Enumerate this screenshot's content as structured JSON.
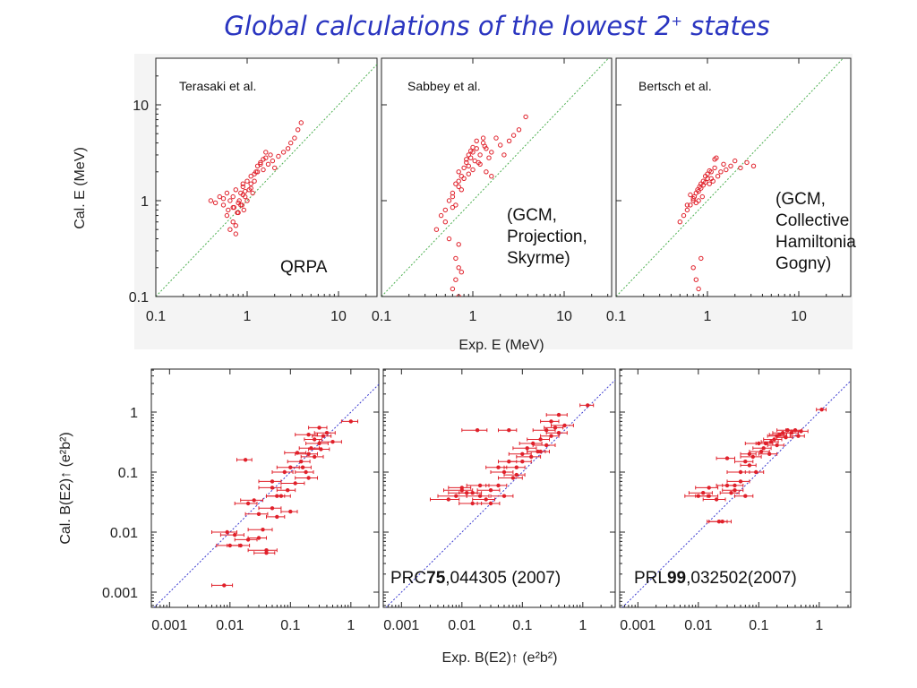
{
  "slide": {
    "title_prefix": "Global calculations of the lowest 2",
    "title_sup": "+",
    "title_suffix": " states"
  },
  "top_panels": [
    {
      "author": "Terasaki et al.",
      "note": [
        "QRPA"
      ]
    },
    {
      "author": "Sabbey et al.",
      "note": [
        "(GCM,",
        "Projection,",
        "Skyrme)"
      ]
    },
    {
      "author": "Bertsch et al.",
      "note": [
        "(GCM,",
        "Collective",
        "Hamiltonia",
        "Gogny)"
      ]
    }
  ],
  "bottom_panels": [
    {
      "ref_prefix": "",
      "ref_bold": "",
      "ref_suffix": ""
    },
    {
      "ref_prefix": "PRC",
      "ref_bold": "75",
      "ref_suffix": ",044305 (2007)"
    },
    {
      "ref_prefix": "PRL",
      "ref_bold": "99",
      "ref_suffix": ",032502(2007)"
    }
  ],
  "axes": {
    "top_ylabel": "Cal. E (MeV)",
    "top_xlabel": "Exp. E (MeV)",
    "bottom_ylabel": "Cal. B(E2)↑ (e²b²)",
    "bottom_xlabel": "Exp. B(E2)↑ (e²b²)"
  },
  "colors": {
    "title": "#2a35c0",
    "points": "#e0202a",
    "diag_top": "#4caf50",
    "diag_bottom": "#3a3ad0"
  },
  "chart_data": [
    {
      "type": "scatter",
      "title": "Terasaki et al.",
      "xlabel": "Exp. E (MeV)",
      "ylabel": "Cal. E (MeV)",
      "xscale": "log",
      "yscale": "log",
      "xlim": [
        0.1,
        25
      ],
      "ylim": [
        0.1,
        25
      ],
      "xticks": [
        "0.1",
        "1",
        "10"
      ],
      "yticks": [
        "0.1",
        "1",
        "10"
      ],
      "x": [
        0.4,
        0.45,
        0.5,
        0.55,
        0.6,
        0.62,
        0.65,
        0.7,
        0.72,
        0.75,
        0.78,
        0.8,
        0.82,
        0.85,
        0.88,
        0.9,
        0.92,
        0.95,
        1.0,
        1.05,
        1.1,
        1.15,
        1.2,
        1.25,
        1.3,
        1.4,
        1.5,
        1.6,
        1.7,
        1.8,
        1.9,
        2.0,
        2.2,
        2.5,
        2.8,
        3.0,
        3.3,
        3.6,
        3.9,
        0.6,
        0.7,
        0.8,
        0.9,
        1.0,
        1.1,
        1.3,
        1.5,
        0.65,
        0.75,
        0.85,
        0.95,
        1.2,
        1.4,
        1.6,
        0.55,
        0.7,
        0.9,
        1.1,
        0.75
      ],
      "y": [
        1.0,
        0.95,
        1.1,
        0.9,
        1.2,
        0.8,
        1.0,
        1.1,
        0.85,
        1.3,
        0.75,
        0.95,
        1.0,
        1.2,
        0.9,
        1.4,
        0.8,
        1.1,
        1.0,
        1.3,
        1.5,
        1.2,
        1.6,
        2.0,
        2.3,
        2.5,
        2.1,
        2.8,
        2.4,
        3.0,
        2.6,
        2.2,
        2.9,
        3.2,
        3.5,
        4.0,
        4.5,
        5.5,
        6.5,
        0.7,
        0.6,
        0.75,
        1.5,
        1.6,
        1.8,
        2.0,
        2.7,
        0.5,
        0.45,
        0.9,
        1.25,
        1.9,
        2.4,
        3.2,
        1.05,
        0.85,
        1.15,
        1.35,
        0.55
      ]
    },
    {
      "type": "scatter",
      "title": "Sabbey et al.",
      "xlabel": "Exp. E (MeV)",
      "ylabel": "Cal. E (MeV)",
      "xscale": "log",
      "yscale": "log",
      "xlim": [
        0.1,
        25
      ],
      "ylim": [
        0.1,
        25
      ],
      "x": [
        0.4,
        0.45,
        0.5,
        0.55,
        0.6,
        0.65,
        0.7,
        0.75,
        0.8,
        0.85,
        0.9,
        0.95,
        1.0,
        1.05,
        1.1,
        1.2,
        1.3,
        1.4,
        1.5,
        1.6,
        1.8,
        2.0,
        2.2,
        2.5,
        2.8,
        3.2,
        3.8,
        0.6,
        0.7,
        0.8,
        0.9,
        1.0,
        1.1,
        1.2,
        1.4,
        1.6,
        0.65,
        0.75,
        0.85,
        0.95,
        1.15,
        1.35,
        0.5,
        0.6,
        0.7,
        0.9,
        1.0,
        1.3,
        0.65,
        0.7,
        0.75,
        0.7,
        0.65,
        0.6,
        0.55,
        0.7
      ],
      "y": [
        0.5,
        0.7,
        0.8,
        1.0,
        1.2,
        1.5,
        2.0,
        1.8,
        2.2,
        2.5,
        3.0,
        2.8,
        3.2,
        2.6,
        3.5,
        3.0,
        4.0,
        3.5,
        2.8,
        3.2,
        4.5,
        3.8,
        3.0,
        4.2,
        4.8,
        5.5,
        7.5,
        1.1,
        1.4,
        1.7,
        2.3,
        3.6,
        4.2,
        2.4,
        2.0,
        1.8,
        0.9,
        1.3,
        2.7,
        3.3,
        2.5,
        3.7,
        0.6,
        0.85,
        1.6,
        1.9,
        2.1,
        4.5,
        0.25,
        0.2,
        0.18,
        0.35,
        0.15,
        0.12,
        0.4,
        0.1
      ]
    },
    {
      "type": "scatter",
      "title": "Bertsch et al.",
      "xlabel": "Exp. E (MeV)",
      "ylabel": "Cal. E (MeV)",
      "xscale": "log",
      "yscale": "log",
      "xlim": [
        0.1,
        25
      ],
      "ylim": [
        0.1,
        25
      ],
      "x": [
        0.5,
        0.55,
        0.6,
        0.65,
        0.7,
        0.72,
        0.75,
        0.78,
        0.8,
        0.82,
        0.85,
        0.88,
        0.9,
        0.95,
        1.0,
        1.05,
        1.1,
        1.15,
        1.2,
        1.3,
        1.4,
        1.5,
        1.6,
        1.8,
        2.0,
        2.3,
        2.7,
        3.2,
        0.6,
        0.7,
        0.8,
        0.9,
        1.0,
        1.1,
        1.2,
        0.65,
        0.75,
        0.85,
        0.95,
        1.05,
        1.25,
        0.7,
        0.75,
        0.8,
        0.85
      ],
      "y": [
        0.6,
        0.7,
        0.8,
        0.9,
        1.0,
        1.1,
        1.2,
        1.3,
        1.0,
        1.4,
        1.5,
        1.1,
        1.6,
        1.8,
        1.7,
        1.5,
        2.0,
        1.6,
        2.2,
        1.8,
        2.0,
        2.4,
        2.1,
        2.3,
        2.6,
        2.2,
        2.5,
        2.3,
        0.9,
        1.05,
        1.25,
        1.45,
        1.9,
        1.7,
        2.7,
        1.15,
        0.95,
        1.35,
        1.55,
        2.05,
        2.8,
        0.2,
        0.15,
        0.12,
        0.25
      ]
    },
    {
      "type": "scatter",
      "error_bars": "x",
      "xlabel": "Exp. B(E2)↑ (e²b²)",
      "ylabel": "Cal. B(E2)↑ (e²b²)",
      "xscale": "log",
      "yscale": "log",
      "xlim": [
        0.0005,
        3.5
      ],
      "ylim": [
        0.0007,
        4
      ],
      "xticks": [
        "0.001",
        "0.01",
        "0.1",
        "1"
      ],
      "yticks": [
        "0.001",
        "0.01",
        "0.1",
        "1"
      ],
      "x": [
        0.008,
        0.01,
        0.012,
        0.015,
        0.018,
        0.02,
        0.025,
        0.03,
        0.035,
        0.04,
        0.05,
        0.06,
        0.07,
        0.08,
        0.1,
        0.12,
        0.15,
        0.18,
        0.2,
        0.22,
        0.25,
        0.3,
        0.35,
        0.4,
        0.5,
        1.0,
        0.05,
        0.06,
        0.1,
        0.13,
        0.2,
        0.25,
        0.3,
        0.2,
        0.09,
        0.05,
        0.009,
        0.03,
        0.02,
        0.04,
        0.16,
        0.32
      ],
      "y": [
        0.0013,
        0.006,
        0.009,
        0.006,
        0.16,
        0.03,
        0.034,
        0.02,
        0.011,
        0.005,
        0.055,
        0.04,
        0.04,
        0.1,
        0.12,
        0.065,
        0.15,
        0.1,
        0.2,
        0.25,
        0.18,
        0.3,
        0.4,
        0.45,
        0.32,
        0.7,
        0.07,
        0.018,
        0.022,
        0.21,
        0.42,
        0.35,
        0.55,
        0.08,
        0.05,
        0.025,
        0.01,
        0.008,
        0.0075,
        0.0045,
        0.12,
        0.24
      ],
      "xerr": [
        0.003,
        0.004,
        0.005,
        0.006,
        0.005,
        0.008,
        0.01,
        0.012,
        0.015,
        0.02,
        0.02,
        0.02,
        0.03,
        0.03,
        0.04,
        0.05,
        0.06,
        0.06,
        0.08,
        0.08,
        0.1,
        0.12,
        0.12,
        0.15,
        0.2,
        0.3,
        0.02,
        0.02,
        0.03,
        0.05,
        0.08,
        0.08,
        0.1,
        0.08,
        0.03,
        0.02,
        0.004,
        0.01,
        0.008,
        0.015,
        0.06,
        0.12
      ]
    },
    {
      "type": "scatter",
      "error_bars": "x",
      "xlabel": "Exp. B(E2)↑ (e²b²)",
      "ylabel": "Cal. B(E2)↑ (e²b²)",
      "xscale": "log",
      "yscale": "log",
      "xlim": [
        0.0005,
        3.5
      ],
      "ylim": [
        0.0007,
        4
      ],
      "x": [
        0.006,
        0.008,
        0.01,
        0.012,
        0.015,
        0.018,
        0.02,
        0.025,
        0.03,
        0.04,
        0.05,
        0.06,
        0.07,
        0.08,
        0.1,
        0.12,
        0.15,
        0.18,
        0.2,
        0.25,
        0.3,
        0.35,
        0.4,
        0.5,
        1.2,
        0.02,
        0.03,
        0.05,
        0.1,
        0.2,
        0.3,
        0.4,
        0.06,
        0.04,
        0.01,
        0.015,
        0.14,
        0.25,
        0.08
      ],
      "y": [
        0.035,
        0.04,
        0.05,
        0.045,
        0.03,
        0.5,
        0.04,
        0.035,
        0.05,
        0.06,
        0.1,
        0.15,
        0.08,
        0.12,
        0.2,
        0.25,
        0.3,
        0.22,
        0.35,
        0.28,
        0.4,
        0.55,
        0.45,
        0.6,
        1.3,
        0.06,
        0.03,
        0.04,
        0.15,
        0.22,
        0.7,
        0.9,
        0.5,
        0.12,
        0.055,
        0.045,
        0.18,
        0.5,
        0.09
      ],
      "xerr": [
        0.003,
        0.004,
        0.005,
        0.006,
        0.006,
        0.008,
        0.008,
        0.01,
        0.012,
        0.015,
        0.02,
        0.02,
        0.03,
        0.03,
        0.04,
        0.05,
        0.06,
        0.06,
        0.08,
        0.1,
        0.1,
        0.12,
        0.15,
        0.2,
        0.3,
        0.008,
        0.012,
        0.02,
        0.04,
        0.08,
        0.1,
        0.15,
        0.02,
        0.015,
        0.004,
        0.006,
        0.06,
        0.1,
        0.03
      ]
    },
    {
      "type": "scatter",
      "error_bars": "x",
      "xlabel": "Exp. B(E2)↑ (e²b²)",
      "ylabel": "Cal. B(E2)↑ (e²b²)",
      "xscale": "log",
      "yscale": "log",
      "xlim": [
        0.0005,
        3.5
      ],
      "ylim": [
        0.0007,
        4
      ],
      "x": [
        0.01,
        0.012,
        0.015,
        0.02,
        0.025,
        0.03,
        0.035,
        0.04,
        0.05,
        0.06,
        0.07,
        0.08,
        0.1,
        0.12,
        0.15,
        0.18,
        0.2,
        0.25,
        0.3,
        0.35,
        0.4,
        0.45,
        0.5,
        1.1,
        0.03,
        0.06,
        0.07,
        0.09,
        0.11,
        0.13,
        0.2,
        0.28,
        0.022,
        0.015,
        0.04,
        0.05,
        0.16,
        0.22
      ],
      "y": [
        0.04,
        0.045,
        0.04,
        0.035,
        0.015,
        0.17,
        0.045,
        0.06,
        0.1,
        0.15,
        0.2,
        0.18,
        0.3,
        0.25,
        0.2,
        0.35,
        0.4,
        0.45,
        0.5,
        0.45,
        0.5,
        0.4,
        0.48,
        1.1,
        0.06,
        0.04,
        0.13,
        0.1,
        0.22,
        0.3,
        0.28,
        0.38,
        0.015,
        0.055,
        0.05,
        0.07,
        0.32,
        0.42
      ],
      "xerr": [
        0.004,
        0.005,
        0.006,
        0.008,
        0.01,
        0.01,
        0.012,
        0.015,
        0.02,
        0.02,
        0.02,
        0.03,
        0.04,
        0.04,
        0.05,
        0.06,
        0.06,
        0.08,
        0.1,
        0.1,
        0.12,
        0.12,
        0.15,
        0.2,
        0.01,
        0.02,
        0.02,
        0.03,
        0.04,
        0.04,
        0.06,
        0.08,
        0.008,
        0.006,
        0.015,
        0.02,
        0.05,
        0.07
      ]
    }
  ]
}
